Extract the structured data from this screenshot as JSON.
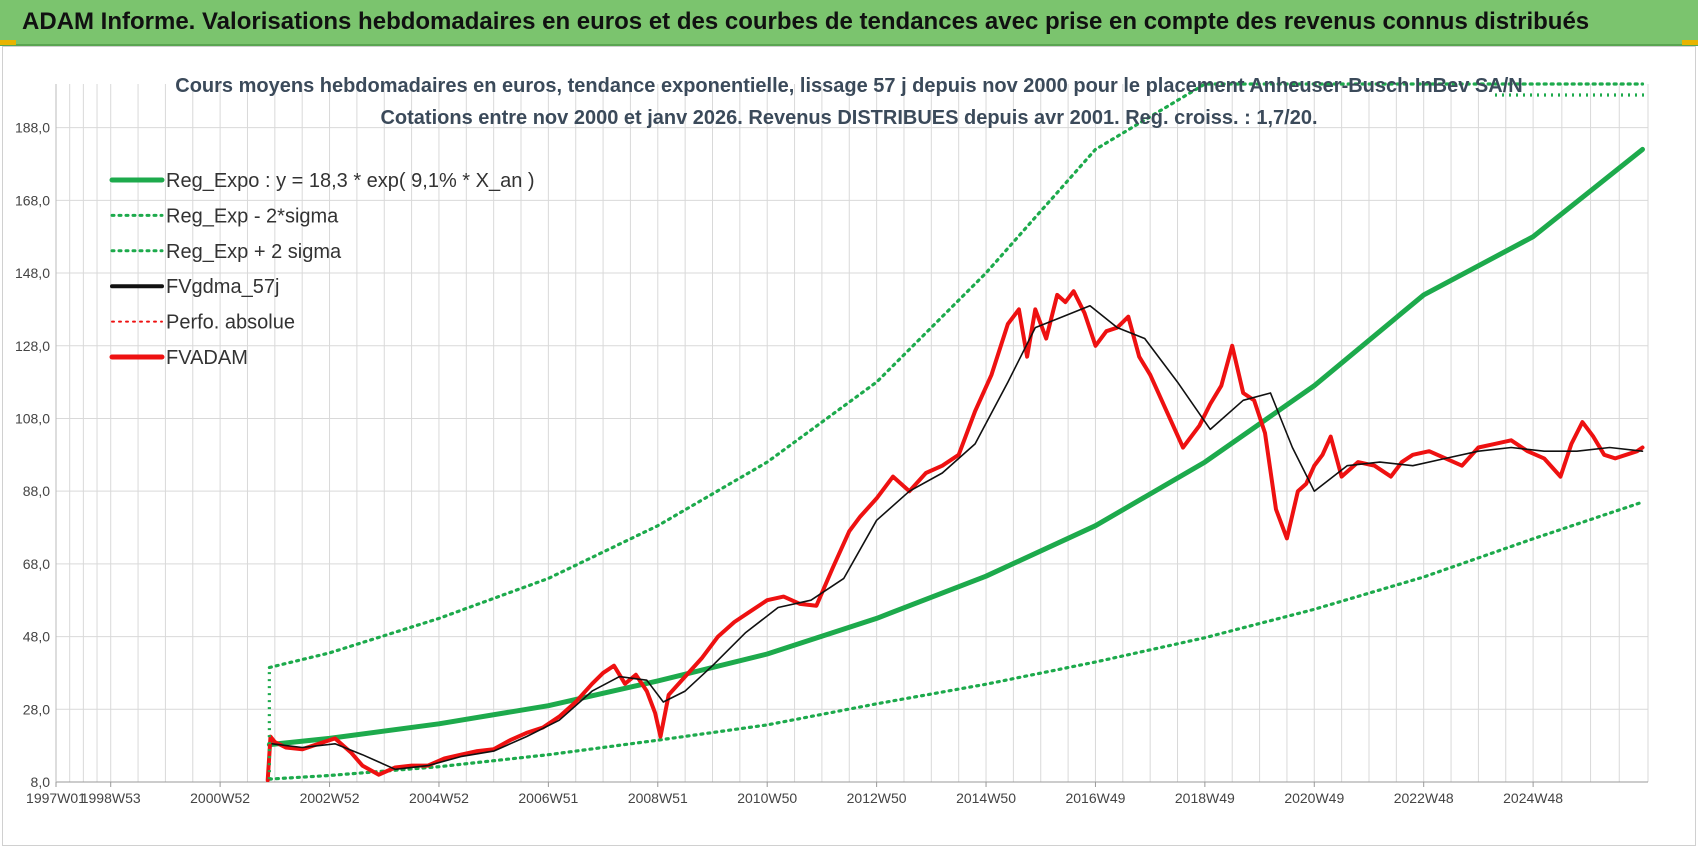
{
  "banner": {
    "title": "ADAM Informe. Valorisations hebdomadaires en euros et des courbes de tendances avec prise en compte des revenus connus distribués"
  },
  "colors": {
    "banner_bg": "#7bc46e",
    "trend_green": "#1daa4c",
    "price_red": "#ee1111",
    "smooth_black": "#111111",
    "grid": "#d9d9d9"
  },
  "chart_data": {
    "type": "line",
    "title": "Cours moyens hebdomadaires en euros, tendance exponentielle, lissage 57 j depuis nov 2000 pour le placement Anheuser-Busch InBev SA/N",
    "subtitle": "Cotations entre nov 2000 et janv 2026. Revenus DISTRIBUES depuis avr 2001. Reg. croiss. : 1,7/20.",
    "xlabel": "",
    "ylabel": "",
    "x_ticks": [
      "1997W01",
      "1998W53",
      "2000W52",
      "2002W52",
      "2004W52",
      "2006W51",
      "2008W51",
      "2010W50",
      "2012W50",
      "2014W50",
      "2016W49",
      "2018W49",
      "2020W49",
      "2022W48",
      "2024W48"
    ],
    "x_tick_years": [
      1997.0,
      1998.0,
      2000.0,
      2002.0,
      2004.0,
      2006.0,
      2008.0,
      2010.0,
      2012.0,
      2014.0,
      2016.0,
      2018.0,
      2020.0,
      2022.0,
      2024.0
    ],
    "xlim": [
      1997.0,
      2026.1
    ],
    "ylim": [
      8,
      200
    ],
    "y_ticks": [
      8,
      28,
      48,
      68,
      88,
      108,
      128,
      148,
      168,
      188
    ],
    "y_tick_labels": [
      "8,0",
      "28,0",
      "48,0",
      "68,0",
      "88,0",
      "108,0",
      "128,0",
      "148,0",
      "168,0",
      "188,0"
    ],
    "grid": true,
    "legend_position": "top-left",
    "legend": [
      {
        "label": "Reg_Expo : y = 18,3 * exp( 9,1% *  X_an )",
        "color": "#1daa4c",
        "style": "solid",
        "width": 5
      },
      {
        "label": "Reg_Exp - 2*sigma",
        "color": "#1daa4c",
        "style": "dotted",
        "width": 3
      },
      {
        "label": "Reg_Exp + 2 sigma",
        "color": "#1daa4c",
        "style": "dotted",
        "width": 3
      },
      {
        "label": "FVgdma_57j",
        "color": "#111111",
        "style": "solid",
        "width": 4
      },
      {
        "label": "Perfo. absolue",
        "color": "#ee1111",
        "style": "dotted",
        "width": 2
      },
      {
        "label": "FVADAM",
        "color": "#ee1111",
        "style": "solid",
        "width": 5
      }
    ],
    "trend_x": [
      2000.9,
      2002,
      2004,
      2006,
      2008,
      2010,
      2012,
      2014,
      2016,
      2018,
      2020,
      2022,
      2024,
      2026
    ],
    "series": [
      {
        "name": "Reg_Expo : y = 18,3 * exp( 9,1% *  X_an )",
        "role": "trend",
        "x_ref": "trend_x",
        "values": [
          18.3,
          20.0,
          24.0,
          29.0,
          35.8,
          43.2,
          53.0,
          64.6,
          78.5,
          96.0,
          117.0,
          142.0,
          158.0,
          182.0
        ]
      },
      {
        "name": "Reg_Exp - 2*sigma",
        "role": "lower",
        "x_ref": "trend_x",
        "values": [
          8.8,
          9.8,
          12.2,
          15.5,
          19.5,
          23.7,
          29.5,
          34.9,
          41.0,
          47.7,
          55.5,
          64.4,
          74.9,
          85.0
        ]
      },
      {
        "name": "Reg_Exp + 2 sigma",
        "role": "upper",
        "x_ref": "trend_x",
        "values": [
          39.5,
          43.5,
          53.0,
          64.0,
          78.5,
          96.0,
          118.0,
          148.0,
          182.0,
          200.0,
          200.0,
          200.0,
          200.0,
          200.0
        ]
      },
      {
        "name": "FVADAM",
        "role": "price",
        "x": [
          2000.87,
          2000.92,
          2001.0,
          2001.2,
          2001.5,
          2001.8,
          2002.1,
          2002.4,
          2002.6,
          2002.9,
          2003.2,
          2003.5,
          2003.8,
          2004.1,
          2004.4,
          2004.7,
          2005.0,
          2005.3,
          2005.6,
          2005.9,
          2006.2,
          2006.5,
          2006.8,
          2007.0,
          2007.2,
          2007.4,
          2007.6,
          2007.8,
          2007.95,
          2008.05,
          2008.2,
          2008.5,
          2008.8,
          2009.1,
          2009.4,
          2009.7,
          2010.0,
          2010.3,
          2010.6,
          2010.9,
          2011.2,
          2011.5,
          2011.7,
          2012.0,
          2012.3,
          2012.6,
          2012.9,
          2013.2,
          2013.5,
          2013.8,
          2014.1,
          2014.4,
          2014.6,
          2014.75,
          2014.9,
          2015.1,
          2015.3,
          2015.45,
          2015.6,
          2015.8,
          2016.0,
          2016.2,
          2016.4,
          2016.6,
          2016.8,
          2017.0,
          2017.3,
          2017.6,
          2017.9,
          2018.1,
          2018.3,
          2018.5,
          2018.7,
          2018.9,
          2019.1,
          2019.3,
          2019.5,
          2019.7,
          2019.85,
          2020.0,
          2020.15,
          2020.3,
          2020.5,
          2020.8,
          2021.1,
          2021.4,
          2021.6,
          2021.8,
          2022.1,
          2022.4,
          2022.7,
          2023.0,
          2023.3,
          2023.6,
          2023.9,
          2024.2,
          2024.5,
          2024.7,
          2024.9,
          2025.1,
          2025.3,
          2025.5,
          2025.7,
          2025.9,
          2026.0
        ],
        "values": [
          8.5,
          20.5,
          19.0,
          17.5,
          17.0,
          18.5,
          20.0,
          16.0,
          12.5,
          10.0,
          12.0,
          12.5,
          12.5,
          14.5,
          15.5,
          16.5,
          17.0,
          19.5,
          21.5,
          23.0,
          26.0,
          30.0,
          35.0,
          38.0,
          40.0,
          35.0,
          37.5,
          33.0,
          27.0,
          20.5,
          32.0,
          37.0,
          42.0,
          48.0,
          52.0,
          55.0,
          58.0,
          59.0,
          57.0,
          56.5,
          67.0,
          77.0,
          81.0,
          86.0,
          92.0,
          88.0,
          93.0,
          95.0,
          98.0,
          110.0,
          120.0,
          134.0,
          138.0,
          125.0,
          138.0,
          130.0,
          142.0,
          140.0,
          143.0,
          137.0,
          128.0,
          132.0,
          133.0,
          136.0,
          125.0,
          120.0,
          110.0,
          100.0,
          106.0,
          112.0,
          117.0,
          128.0,
          115.0,
          113.0,
          104.0,
          83.0,
          75.0,
          88.0,
          90.0,
          95.0,
          98.0,
          103.0,
          92.0,
          96.0,
          95.0,
          92.0,
          96.0,
          98.0,
          99.0,
          97.0,
          95.0,
          100.0,
          101.0,
          102.0,
          99.0,
          97.0,
          92.0,
          101.0,
          107.0,
          103.0,
          98.0,
          97.0,
          98.0,
          99.0,
          100.0
        ]
      },
      {
        "name": "FVgdma_57j",
        "role": "smooth",
        "x": [
          2000.95,
          2001.5,
          2002.1,
          2002.6,
          2003.2,
          2003.8,
          2004.4,
          2005.0,
          2005.6,
          2006.2,
          2006.8,
          2007.3,
          2007.8,
          2008.1,
          2008.5,
          2009.0,
          2009.6,
          2010.2,
          2010.8,
          2011.4,
          2012.0,
          2012.6,
          2013.2,
          2013.8,
          2014.4,
          2014.9,
          2015.4,
          2015.9,
          2016.4,
          2016.9,
          2017.5,
          2018.1,
          2018.7,
          2019.2,
          2019.6,
          2020.0,
          2020.6,
          2021.2,
          2021.8,
          2022.4,
          2023.0,
          2023.6,
          2024.2,
          2024.8,
          2025.4,
          2026.0
        ],
        "values": [
          18.5,
          17.5,
          18.5,
          15.5,
          11.5,
          12.5,
          15.0,
          16.5,
          20.5,
          25.0,
          33.0,
          37.0,
          36.0,
          30.0,
          33.0,
          40.0,
          49.0,
          56.0,
          58.0,
          64.0,
          80.0,
          88.0,
          93.0,
          101.0,
          118.0,
          133.0,
          136.0,
          139.0,
          133.0,
          130.0,
          118.0,
          105.0,
          113.0,
          115.0,
          100.0,
          88.0,
          95.0,
          96.0,
          95.0,
          97.0,
          99.0,
          100.0,
          99.0,
          99.0,
          100.0,
          99.0
        ]
      },
      {
        "name": "Perfo. absolue",
        "role": "perf",
        "x": [],
        "values": []
      }
    ]
  }
}
